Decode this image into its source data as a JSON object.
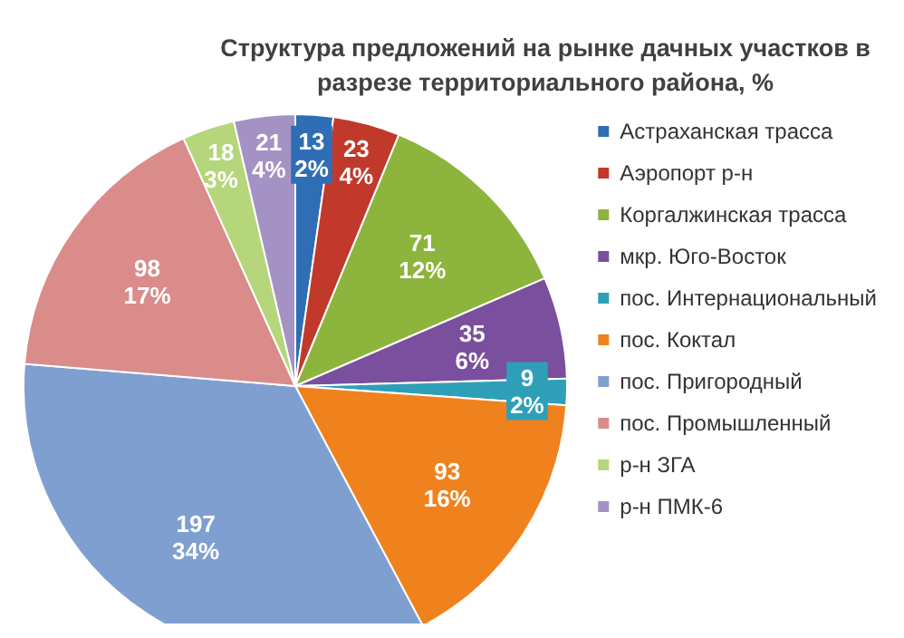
{
  "chart_data": {
    "type": "pie",
    "title": "Структура предложений на рынке дачных участков в разрезе территориального района, %",
    "categories": [
      "Астраханская трасса",
      "Аэропорт р-н",
      "Коргалжинская трасса",
      "мкр. Юго-Восток",
      "пос. Интернациональный",
      "пос. Коктал",
      "пос. Пригородный",
      "пос. Промышленный",
      "р-н ЗГА",
      "р-н ПМК-6"
    ],
    "values": [
      13,
      23,
      71,
      35,
      9,
      93,
      197,
      98,
      18,
      21
    ],
    "value_labels": [
      "13\n2%",
      "23\n4%",
      "71\n12%",
      "35\n6%",
      "9\n2%",
      "93\n16%",
      "197\n34%",
      "98\n17%",
      "18\n3%",
      "21\n4%"
    ],
    "colors": [
      "#2f6db5",
      "#c0392b",
      "#8db43c",
      "#7a4f9e",
      "#2f9fb8",
      "#f0821e",
      "#7f9fd0",
      "#d98c8a",
      "#b5d67a",
      "#a592c4"
    ],
    "legend": "right"
  }
}
